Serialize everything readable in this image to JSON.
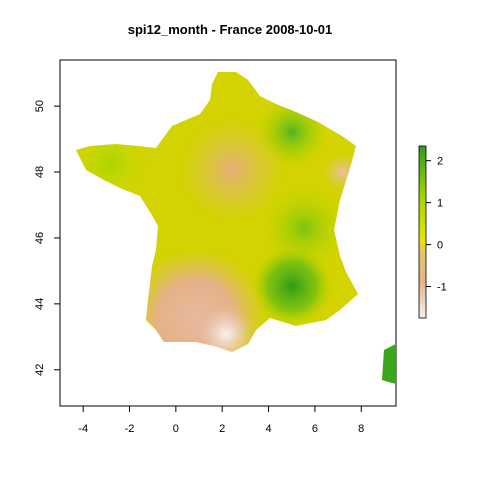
{
  "title": "spi12_month - France 2008-10-01",
  "chart_data": {
    "type": "heatmap",
    "xlim": [
      -5,
      9.5
    ],
    "ylim": [
      40.9,
      51.4
    ],
    "x_ticks": [
      -4,
      -2,
      0,
      2,
      4,
      6,
      8
    ],
    "y_ticks": [
      42,
      44,
      46,
      48,
      50
    ],
    "grid": false,
    "legend": "right",
    "colorbar": {
      "min": -1.75,
      "max": 2.35,
      "ticks": [
        2,
        1,
        0,
        -1
      ],
      "colors": [
        "#f2f2f2",
        "#e7b48c",
        "#e0c56a",
        "#e6e600",
        "#a6d600",
        "#2e9e1a"
      ]
    }
  }
}
